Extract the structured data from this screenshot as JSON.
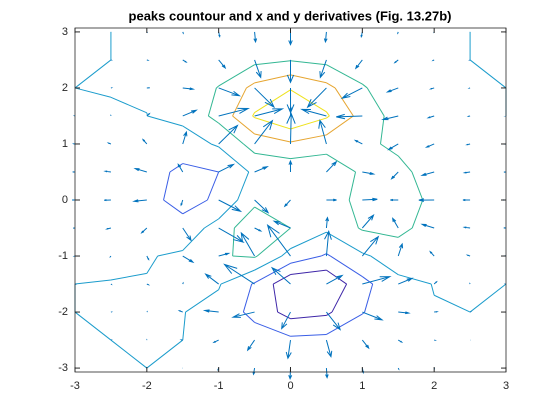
{
  "chart_data": {
    "type": "contour",
    "title": "peaks countour and x and y derivatives (Fig. 13.27b)",
    "x": [
      -3,
      -2.5,
      -2,
      -1.5,
      -1,
      -0.5,
      0,
      0.5,
      1,
      1.5,
      2,
      2.5,
      3
    ],
    "y": [
      -3,
      -2.5,
      -2,
      -1.5,
      -1,
      -0.5,
      0,
      0.5,
      1,
      1.5,
      2,
      2.5,
      3
    ],
    "z": [
      [
        0,
        0,
        0,
        0,
        -0.03,
        -0.14,
        -0.24,
        -0.22,
        -0.11,
        -0.03,
        0,
        0,
        0
      ],
      [
        0,
        0,
        0.02,
        0,
        -0.23,
        -0.91,
        -1.57,
        -1.41,
        -0.69,
        -0.18,
        -0.03,
        0,
        0
      ],
      [
        0,
        0.01,
        0.05,
        0.05,
        -0.59,
        -2.64,
        -4.76,
        -4.35,
        -2.1,
        -0.53,
        -0.06,
        0,
        0
      ],
      [
        0,
        0.01,
        0.08,
        0.33,
        0.15,
        -2.19,
        -5.68,
        -5.76,
        -2.63,
        -0.44,
        0.04,
        0.03,
        0
      ],
      [
        -0.01,
        -0.06,
        -0.13,
        0.3,
        1.86,
        2.22,
        -0.72,
        -2.22,
        -0.27,
        0.88,
        0.5,
        0.11,
        0.01
      ],
      [
        -0.03,
        -0.2,
        -0.8,
        -1.21,
        0.8,
        3.55,
        2,
        0.39,
        2.2,
        2.56,
        1.12,
        0.24,
        0.03
      ],
      [
        -0.04,
        -0.3,
        -1.33,
        -2.77,
        -1.65,
        1.48,
        0.98,
        0.37,
        2.94,
        3.27,
        1.41,
        0.3,
        0.03
      ],
      [
        -0.03,
        -0.25,
        -1.12,
        -2.49,
        -2,
        0.39,
        0.46,
        0.38,
        2.38,
        2.56,
        1.09,
        0.23,
        0.03
      ],
      [
        -0.01,
        -0.11,
        -0.48,
        -0.86,
        0.23,
        2.79,
        3.69,
        2.93,
        2.43,
        1.58,
        0.58,
        0.11,
        0.01
      ],
      [
        0,
        -0.02,
        -0.01,
        0.48,
        2.61,
        6.2,
        8,
        6.25,
        3.25,
        1.19,
        0.29,
        0.05,
        0
      ],
      [
        0,
        0.01,
        0.08,
        0.55,
        2.1,
        4.56,
        5.86,
        4.57,
        2.21,
        0.68,
        0.13,
        0.02,
        0
      ],
      [
        0,
        0,
        0.03,
        0.19,
        0.69,
        1.47,
        1.88,
        1.47,
        0.7,
        0.2,
        0.04,
        0,
        0
      ],
      [
        0,
        0,
        0.01,
        0.03,
        0.11,
        0.23,
        0.3,
        0.23,
        0.11,
        0.03,
        0.01,
        0,
        0
      ]
    ],
    "levels": [
      -4,
      -2,
      0,
      2,
      4,
      6
    ],
    "level_colors": [
      "#3e26a8",
      "#3a5ee6",
      "#1b9ccc",
      "#33b793",
      "#e6a530",
      "#eee21d"
    ],
    "quiver": true,
    "quiver_color": "#0072bd",
    "xlim": [
      -3,
      3
    ],
    "ylim": [
      -3.07,
      3.07
    ],
    "xticks": [
      -3,
      -2,
      -1,
      0,
      1,
      2,
      3
    ],
    "yticks": [
      -3,
      -2,
      -1,
      0,
      1,
      2,
      3
    ]
  }
}
